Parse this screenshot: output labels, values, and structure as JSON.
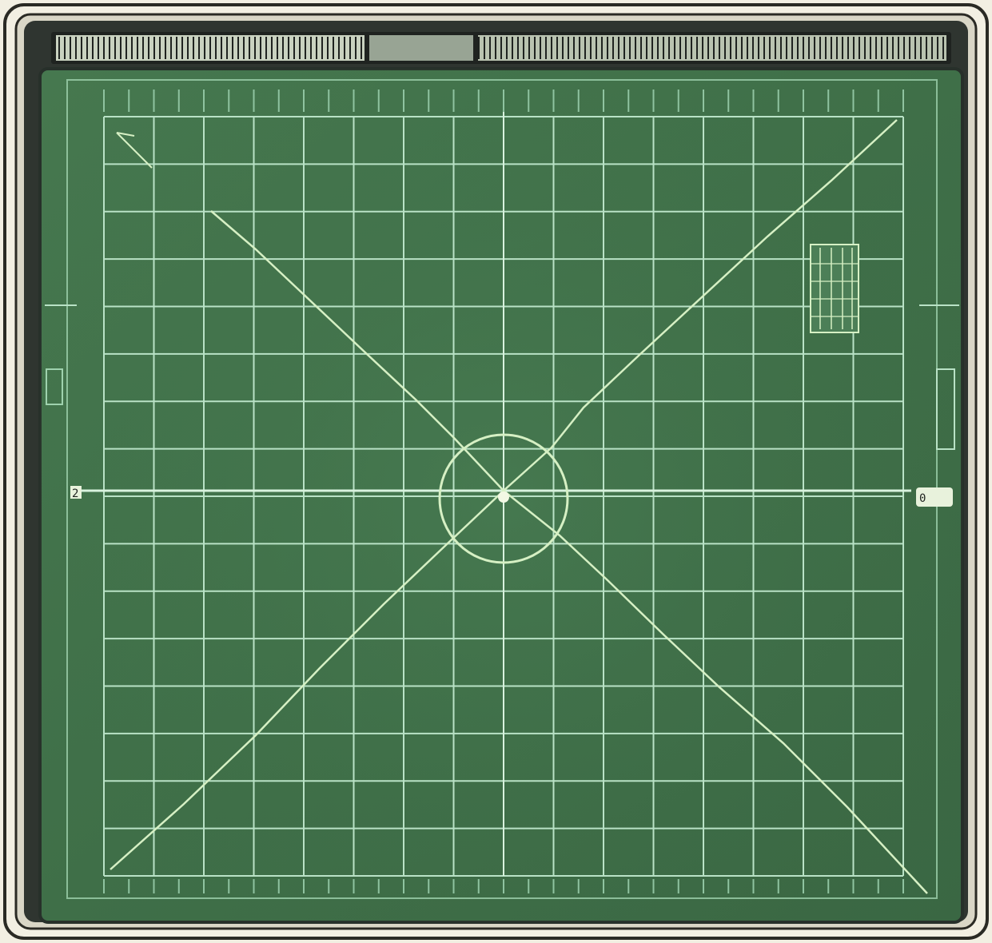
{
  "colors": {
    "paper": "#f2efe2",
    "bezel_outer": "#2a2a24",
    "bezel_inner": "#3a3f35",
    "screen": "#3f6f48",
    "screen_edge": "#345c3c",
    "grid_line": "#b9e2c6",
    "grid_line_dim": "#8fc3a0",
    "trace": "#d6f0c4",
    "ruler_dark": "#1f2320",
    "ruler_light": "#c9d2c0"
  },
  "icons": {
    "center_reticle": "crosshair-circle-icon",
    "left_marker": "tick-marker-icon",
    "right_marker": "tick-marker-icon",
    "scale_panel": "scale-ladder-icon"
  },
  "labels": {
    "left_marker": "2",
    "right_marker": "0"
  },
  "grid": {
    "columns": 16,
    "rows": 16
  }
}
